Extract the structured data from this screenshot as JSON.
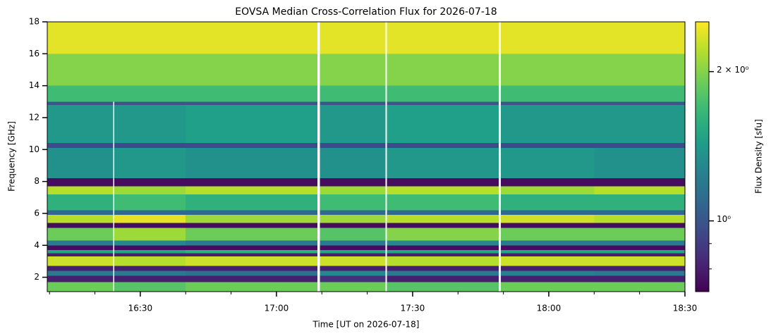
{
  "chart_data": {
    "type": "heatmap",
    "title": "EOVSA Median Cross-Correlation Flux for 2026-07-18",
    "xlabel": "Time [UT on 2026-07-18]",
    "ylabel": "Frequency [GHz]",
    "colorbar_label": "Flux Density [sfu]",
    "colormap": "viridis",
    "color_scale": "log",
    "clim": [
      0.72,
      2.52
    ],
    "cticks": [
      {
        "value": 1,
        "label": "10⁰"
      },
      {
        "value": 2,
        "label": "2 × 10⁰"
      }
    ],
    "cminor_ticks": [
      0.8,
      0.9
    ],
    "xlim": [
      969.5,
      1110
    ],
    "xticks": [
      {
        "value": 990,
        "label": "16:30"
      },
      {
        "value": 1020,
        "label": "17:00"
      },
      {
        "value": 1050,
        "label": "17:30"
      },
      {
        "value": 1080,
        "label": "18:00"
      },
      {
        "value": 1110,
        "label": "18:30"
      }
    ],
    "xminor_ticks": [
      970,
      980,
      1000,
      1010,
      1030,
      1040,
      1060,
      1070,
      1090,
      1100
    ],
    "ylim": [
      1.1,
      18
    ],
    "yticks": [
      2,
      4,
      6,
      8,
      10,
      12,
      14,
      16,
      18
    ],
    "x_edges": [
      969.5,
      984,
      984.3,
      1000,
      1029,
      1029.6,
      1044,
      1044.3,
      1069,
      1069.4,
      1090,
      1110
    ],
    "y_edges": [
      1.1,
      1.7,
      2.1,
      2.4,
      2.7,
      3.3,
      3.5,
      3.7,
      4.0,
      4.3,
      5.1,
      5.4,
      5.9,
      6.2,
      7.2,
      7.7,
      8.2,
      10.1,
      10.4,
      12.8,
      13,
      14,
      16,
      18
    ],
    "z": [
      [
        1.9,
        null,
        1.8,
        1.9,
        null,
        1.9,
        null,
        1.8,
        null,
        1.9,
        1.9
      ],
      [
        0.8,
        null,
        0.8,
        0.8,
        null,
        0.85,
        null,
        0.8,
        null,
        0.8,
        0.8
      ],
      [
        1.2,
        null,
        1.2,
        1.15,
        null,
        1.3,
        null,
        1.2,
        null,
        1.25,
        1.2
      ],
      [
        0.8,
        null,
        0.8,
        0.8,
        null,
        0.8,
        null,
        0.8,
        null,
        0.8,
        0.8
      ],
      [
        2.3,
        null,
        2.2,
        2.3,
        null,
        2.3,
        null,
        2.2,
        null,
        2.3,
        2.3
      ],
      [
        0.8,
        null,
        0.8,
        0.8,
        null,
        0.8,
        null,
        0.8,
        null,
        0.8,
        0.8
      ],
      [
        1.5,
        null,
        1.5,
        1.6,
        null,
        1.5,
        null,
        1.5,
        null,
        1.5,
        1.5
      ],
      [
        0.75,
        null,
        0.75,
        0.75,
        null,
        0.75,
        null,
        0.75,
        null,
        0.75,
        0.75
      ],
      [
        1.2,
        null,
        1.3,
        1.2,
        null,
        1.2,
        null,
        1.3,
        null,
        1.2,
        1.2
      ],
      [
        1.9,
        null,
        2.1,
        1.9,
        null,
        1.8,
        null,
        2.0,
        null,
        1.9,
        1.9
      ],
      [
        0.75,
        null,
        0.75,
        0.75,
        null,
        0.75,
        null,
        0.75,
        null,
        0.75,
        0.75
      ],
      [
        2.2,
        null,
        2.4,
        2.1,
        null,
        2.1,
        null,
        2.2,
        null,
        2.3,
        2.2
      ],
      [
        1.1,
        null,
        1.1,
        1.1,
        null,
        1.1,
        null,
        1.1,
        null,
        1.1,
        1.1
      ],
      [
        1.6,
        null,
        1.7,
        1.6,
        null,
        1.7,
        null,
        1.7,
        null,
        1.6,
        1.6
      ],
      [
        2.2,
        null,
        2.1,
        2.2,
        null,
        2.1,
        null,
        2.2,
        null,
        2.1,
        2.2
      ],
      [
        0.75,
        null,
        0.75,
        0.75,
        null,
        0.75,
        null,
        0.75,
        null,
        0.75,
        0.75
      ],
      [
        1.35,
        null,
        1.4,
        1.35,
        null,
        1.35,
        null,
        1.4,
        null,
        1.4,
        1.35
      ],
      [
        0.95,
        null,
        0.95,
        0.95,
        null,
        0.95,
        null,
        0.95,
        null,
        0.95,
        0.95
      ],
      [
        1.4,
        null,
        1.4,
        1.45,
        null,
        1.4,
        null,
        1.45,
        null,
        1.4,
        1.4
      ],
      [
        1.0,
        null,
        1.0,
        1.0,
        null,
        1.0,
        null,
        1.0,
        null,
        1.0,
        1.0
      ],
      [
        1.7,
        1.7,
        1.7,
        1.7,
        null,
        1.7,
        null,
        1.7,
        null,
        1.7,
        1.7
      ],
      [
        2.0,
        2.0,
        2.0,
        2.0,
        null,
        2.0,
        null,
        2.0,
        null,
        2.0,
        2.0
      ],
      [
        2.4,
        2.4,
        2.4,
        2.4,
        null,
        2.4,
        null,
        2.4,
        null,
        2.4,
        2.4
      ]
    ]
  }
}
